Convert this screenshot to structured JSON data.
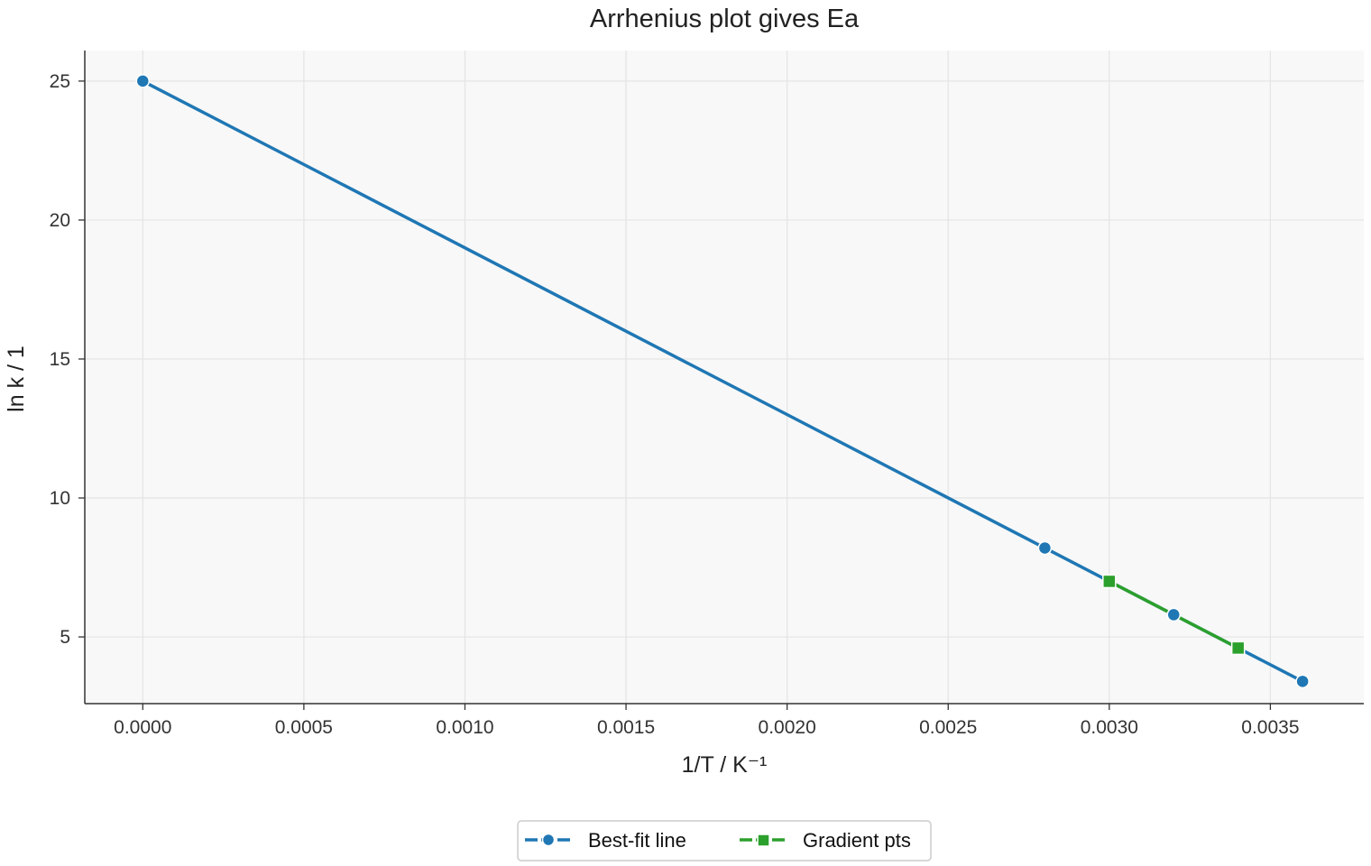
{
  "chart_data": {
    "type": "line",
    "title": "Arrhenius plot gives Ea",
    "xlabel": "1/T / K⁻¹",
    "ylabel": "ln k / 1",
    "xlim": [
      -0.00018,
      0.00379
    ],
    "ylim": [
      2.6,
      26.1
    ],
    "x_ticks": [
      "0.0000",
      "0.0005",
      "0.0010",
      "0.0015",
      "0.0020",
      "0.0025",
      "0.0030",
      "0.0035"
    ],
    "y_ticks": [
      "5",
      "10",
      "15",
      "20",
      "25"
    ],
    "grid": true,
    "legend_position": "bottom-center",
    "series": [
      {
        "name": "Best-fit line",
        "color": "#1f77b4",
        "marker": "circle",
        "points": [
          {
            "x": 0.0,
            "y": 25.0
          },
          {
            "x": 0.0028,
            "y": 8.2
          },
          {
            "x": 0.0032,
            "y": 5.8
          },
          {
            "x": 0.0036,
            "y": 3.4
          }
        ]
      },
      {
        "name": "Gradient pts",
        "color": "#2ca02c",
        "marker": "square",
        "points": [
          {
            "x": 0.003,
            "y": 7.0
          },
          {
            "x": 0.0034,
            "y": 4.6
          }
        ]
      }
    ]
  }
}
